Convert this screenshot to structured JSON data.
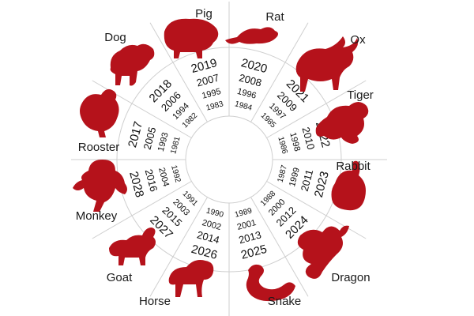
{
  "colors": {
    "silhouette": "#b5121b",
    "text": "#111111",
    "lines": "#cfcfcf",
    "background": "#ffffff"
  },
  "segments": [
    {
      "animal": "Rat",
      "icon": "rat-icon",
      "years": [
        "2020",
        "2008",
        "1996",
        "1984"
      ]
    },
    {
      "animal": "Ox",
      "icon": "ox-icon",
      "years": [
        "2021",
        "2009",
        "1997",
        "1985"
      ]
    },
    {
      "animal": "Tiger",
      "icon": "tiger-icon",
      "years": [
        "2022",
        "2010",
        "1998",
        "1986"
      ]
    },
    {
      "animal": "Rabbit",
      "icon": "rabbit-icon",
      "years": [
        "2023",
        "2011",
        "1999",
        "1987"
      ]
    },
    {
      "animal": "Dragon",
      "icon": "dragon-icon",
      "years": [
        "2024",
        "2012",
        "2000",
        "1988"
      ]
    },
    {
      "animal": "Snake",
      "icon": "snake-icon",
      "years": [
        "2025",
        "2013",
        "2001",
        "1989"
      ]
    },
    {
      "animal": "Horse",
      "icon": "horse-icon",
      "years": [
        "2026",
        "2014",
        "2002",
        "1990"
      ]
    },
    {
      "animal": "Goat",
      "icon": "goat-icon",
      "years": [
        "2027",
        "2015",
        "2003",
        "1991"
      ]
    },
    {
      "animal": "Monkey",
      "icon": "monkey-icon",
      "years": [
        "2028",
        "2016",
        "2004",
        "1992"
      ]
    },
    {
      "animal": "Rooster",
      "icon": "rooster-icon",
      "years": [
        "2017",
        "2005",
        "1993",
        "1981"
      ]
    },
    {
      "animal": "Dog",
      "icon": "dog-icon",
      "years": [
        "2018",
        "2006",
        "1994",
        "1982"
      ]
    },
    {
      "animal": "Pig",
      "icon": "pig-icon",
      "years": [
        "2019",
        "2007",
        "1995",
        "1983"
      ]
    }
  ]
}
